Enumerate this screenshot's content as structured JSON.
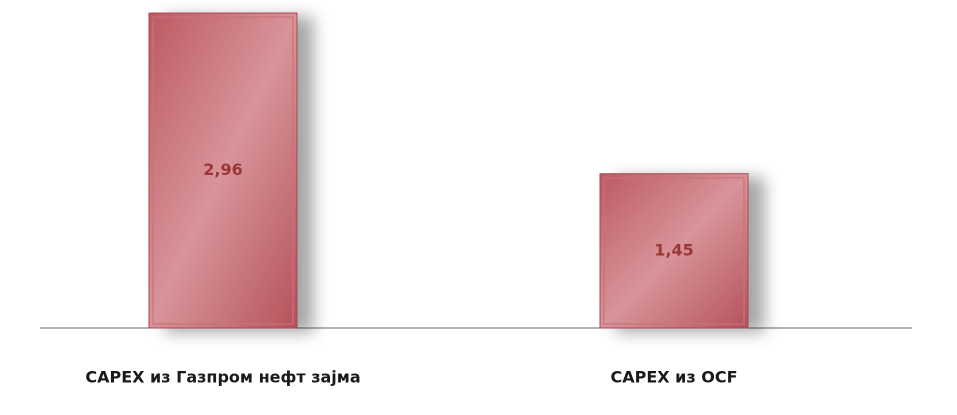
{
  "chart_data": {
    "type": "bar",
    "categories": [
      "CAPEX из Газпром нефт зајма",
      "CAPEX из OCF"
    ],
    "values": [
      2.96,
      1.45
    ],
    "value_labels": [
      "2,96",
      "1,45"
    ],
    "color": "#c9727a"
  }
}
